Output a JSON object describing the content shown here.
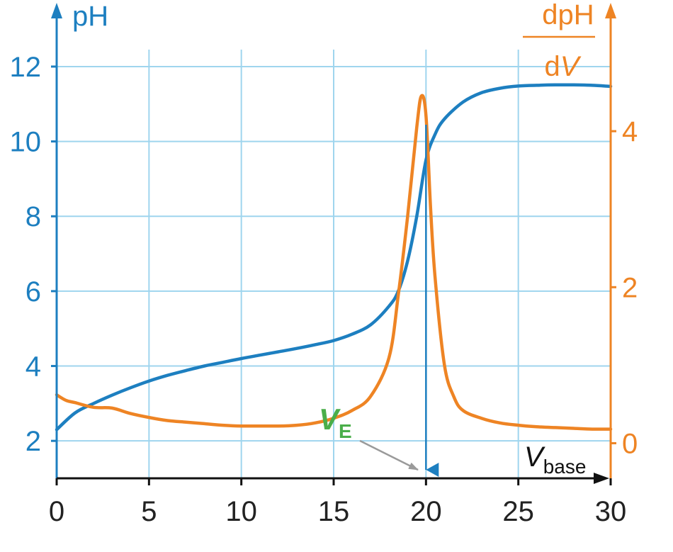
{
  "chart_data": {
    "type": "line",
    "title": "",
    "colors": {
      "ph": "#1d7fc0",
      "derivative": "#ee8424",
      "grid": "#9fd5ee",
      "axis": "#111111",
      "equivalence": "#4aae4a",
      "pointer": "#9a9a9a"
    },
    "x_axis": {
      "label_main": "V",
      "label_sub": "base",
      "range": [
        0,
        30
      ],
      "ticks": [
        0,
        5,
        10,
        15,
        20,
        25,
        30
      ],
      "tick_labels": [
        "0",
        "5",
        "10",
        "15",
        "20",
        "25",
        "30"
      ]
    },
    "y_axis_left": {
      "label": "pH",
      "range": [
        1,
        13.4
      ],
      "ticks": [
        2,
        4,
        6,
        8,
        10,
        12
      ],
      "tick_labels": [
        "2",
        "4",
        "6",
        "8",
        "10",
        "12"
      ]
    },
    "y_axis_right": {
      "label_numerator": "dpH",
      "label_denominator_prefix": "d",
      "label_denominator_var": "V",
      "range": [
        -0.45,
        5.5
      ],
      "ticks": [
        0,
        2,
        4
      ],
      "tick_labels": [
        "0",
        "2",
        "4"
      ]
    },
    "grid": true,
    "series": [
      {
        "name": "pH",
        "axis": "left",
        "x": [
          0,
          1,
          2,
          3,
          4,
          5,
          6,
          7,
          8,
          9,
          10,
          11,
          12,
          13,
          14,
          15,
          16,
          17,
          18,
          18.5,
          19,
          19.5,
          20,
          20.5,
          21,
          22,
          23,
          24,
          25,
          26,
          27,
          28,
          29,
          30
        ],
        "y": [
          2.3,
          2.75,
          3.0,
          3.22,
          3.42,
          3.6,
          3.75,
          3.88,
          4.0,
          4.1,
          4.2,
          4.29,
          4.38,
          4.47,
          4.57,
          4.68,
          4.85,
          5.1,
          5.6,
          6.0,
          6.8,
          8.0,
          9.5,
          10.2,
          10.6,
          11.05,
          11.3,
          11.42,
          11.48,
          11.5,
          11.51,
          11.51,
          11.5,
          11.47
        ]
      },
      {
        "name": "dpH/dV",
        "axis": "right",
        "x": [
          0,
          0.5,
          1,
          2,
          3,
          4,
          5,
          6,
          7,
          8,
          9,
          10,
          11,
          12,
          13,
          14,
          15,
          16,
          17,
          18,
          18.5,
          19,
          19.5,
          19.75,
          20,
          20.25,
          20.5,
          21,
          21.5,
          22,
          23,
          24,
          25,
          26,
          27,
          28,
          29,
          30
        ],
        "y": [
          0.62,
          0.55,
          0.52,
          0.46,
          0.45,
          0.38,
          0.33,
          0.29,
          0.27,
          0.25,
          0.23,
          0.22,
          0.22,
          0.22,
          0.23,
          0.26,
          0.32,
          0.42,
          0.6,
          1.1,
          1.9,
          2.9,
          4.05,
          4.45,
          4.2,
          3.0,
          2.1,
          1.0,
          0.6,
          0.42,
          0.32,
          0.26,
          0.23,
          0.21,
          0.2,
          0.19,
          0.18,
          0.18
        ]
      }
    ],
    "annotations": {
      "equivalence_label": "V",
      "equivalence_subscript": "E",
      "equivalence_x": 20
    }
  }
}
